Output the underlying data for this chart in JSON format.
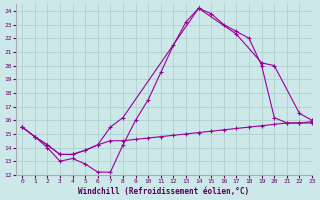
{
  "xlabel": "Windchill (Refroidissement éolien,°C)",
  "xlim": [
    -0.5,
    23
  ],
  "ylim": [
    12,
    24.5
  ],
  "xticks": [
    0,
    1,
    2,
    3,
    4,
    5,
    6,
    7,
    8,
    9,
    10,
    11,
    12,
    13,
    14,
    15,
    16,
    17,
    18,
    19,
    20,
    21,
    22,
    23
  ],
  "yticks": [
    12,
    13,
    14,
    15,
    16,
    17,
    18,
    19,
    20,
    21,
    22,
    23,
    24
  ],
  "bg_color": "#cce8e8",
  "line_color": "#990099",
  "grid_color": "#aacccc",
  "line1_x": [
    0,
    1,
    2,
    3,
    4,
    5,
    6,
    7,
    8,
    9,
    10,
    11,
    12,
    13,
    14,
    15,
    16,
    17,
    18,
    19,
    20,
    21,
    22,
    23
  ],
  "line1_y": [
    15.5,
    14.8,
    14.0,
    13.0,
    13.2,
    12.8,
    12.2,
    12.2,
    14.2,
    16.0,
    17.5,
    19.5,
    21.5,
    23.2,
    24.2,
    23.8,
    23.0,
    22.5,
    22.0,
    20.0,
    16.2,
    15.8,
    15.8,
    15.8
  ],
  "line2_x": [
    0,
    1,
    2,
    3,
    4,
    5,
    6,
    7,
    8,
    14,
    17,
    19,
    20,
    22,
    23
  ],
  "line2_y": [
    15.5,
    14.8,
    14.2,
    13.5,
    13.5,
    13.8,
    14.2,
    15.5,
    16.2,
    24.2,
    22.3,
    20.2,
    20.0,
    16.5,
    16.0
  ],
  "line3_x": [
    0,
    1,
    2,
    3,
    4,
    5,
    6,
    7,
    8,
    9,
    10,
    11,
    12,
    13,
    14,
    15,
    16,
    17,
    18,
    19,
    20,
    21,
    22,
    23
  ],
  "line3_y": [
    15.5,
    14.8,
    14.2,
    13.5,
    13.5,
    13.8,
    14.2,
    14.5,
    14.5,
    14.6,
    14.7,
    14.8,
    14.9,
    15.0,
    15.1,
    15.2,
    15.3,
    15.4,
    15.5,
    15.6,
    15.7,
    15.8,
    15.8,
    15.9
  ]
}
